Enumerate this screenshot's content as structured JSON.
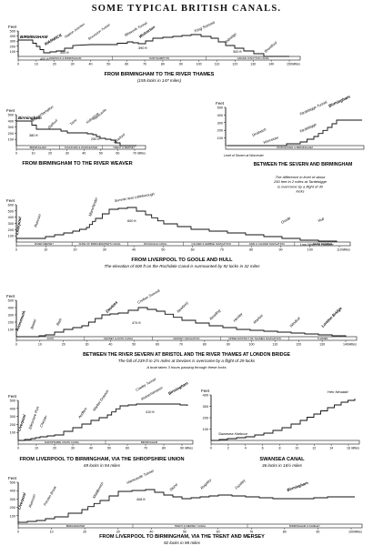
{
  "title": "SOME TYPICAL BRITISH CANALS.",
  "feet_label": "Feet",
  "miles_label": "Miles",
  "panels": [
    {
      "id": "thames",
      "caption": "FROM BIRMINGHAM TO THE RIVER THAMES",
      "subcaption": "(155 locks in 147 miles)",
      "y_ticks": [
        "500",
        "400",
        "300",
        "200",
        "100"
      ],
      "x_ticks": [
        "0",
        "10",
        "20",
        "30",
        "40",
        "50",
        "60",
        "70",
        "80",
        "90",
        "100",
        "110",
        "120",
        "130",
        "140",
        "150"
      ],
      "places": [
        "BIRMINGHAM",
        "WARWICK",
        "Napton Junction",
        "Braunston Tunnel",
        "Blisworth Tunnel",
        "Wolverton",
        "Tring Summit",
        "Uxbridge",
        "Brentford"
      ],
      "levels": [
        "400 ft",
        "300 ft",
        "390 ft",
        "300 ft"
      ],
      "band_labels": [
        "WARWICK & BIRMINGHAM",
        "NORTHAMPTON",
        "GRAND JUNCTION CANAL"
      ]
    },
    {
      "id": "weaver",
      "caption": "FROM BIRMINGHAM TO THE RIVER WEAVER",
      "y_ticks": [
        "500",
        "400",
        "300",
        "200",
        "100"
      ],
      "x_ticks": [
        "0",
        "10",
        "20",
        "30",
        "40",
        "50",
        "60",
        "70"
      ],
      "places": [
        "Birmingham",
        "Wolverhampton",
        "Stafford",
        "Trent",
        "Kidsgrove",
        "Harecastle",
        "Winsford"
      ],
      "levels": [
        "380 ft",
        "250 ft"
      ],
      "band_labels": [
        "BIRMINGHAM",
        "STAFFORD & WORCESTER",
        "TRENT & MERSEY"
      ]
    },
    {
      "id": "severn",
      "caption": "BETWEEN THE SEVERN AND BIRMINGHAM",
      "note": "The difference in level of about 250 feet in 2 miles at Tardebigge is overcome by a flight of 30 locks",
      "y_ticks": [
        "500",
        "400",
        "300",
        "200",
        "100"
      ],
      "places": [
        "Tardebigge Tunnel",
        "Birmingham",
        "Droitwich",
        "Tardebigge",
        "Worcester",
        "Level of Severn at Worcester"
      ],
      "band_labels": [
        "WORCESTER & BIRMINGHAM"
      ]
    },
    {
      "id": "goole",
      "caption": "FROM LIVERPOOL TO GOOLE AND HULL",
      "subcaption": "The elevation of 600 ft on the Rochdale Canal is surmounted by 92 locks in 32 miles",
      "y_ticks": [
        "600",
        "500",
        "400",
        "300",
        "200",
        "100"
      ],
      "x_ticks": [
        "0",
        "10",
        "20",
        "30",
        "40",
        "50",
        "60",
        "70",
        "80",
        "90",
        "100",
        "110"
      ],
      "places": [
        "Liverpool",
        "Runcorn",
        "Manchester",
        "Summit near Littleborough",
        "Goole",
        "Hull",
        "Low Water in Humber"
      ],
      "levels": [
        "600 ft"
      ],
      "band_labels": [
        "RIVER MERSEY",
        "DUKE OF BRIDGEWATER'S CANAL",
        "ROCHDALE CANAL",
        "CALDER & HEBBLE NAVIGATION",
        "AIRE & CALDER NAVIGATION",
        "RIVER HUMBER"
      ]
    },
    {
      "id": "kennet",
      "caption": "BETWEEN THE RIVER SEVERN AT BRISTOL AND THE RIVER THAMES AT LONDON BRIDGE",
      "subcaption": "The fall of 239 ft in 2½ miles at Devizes is overcome by a flight of 29 locks",
      "note": "A boat takes 3 hours passing through these locks",
      "y_ticks": [
        "500",
        "400",
        "300",
        "200",
        "100"
      ],
      "x_ticks": [
        "0",
        "10",
        "20",
        "30",
        "40",
        "50",
        "60",
        "70",
        "80",
        "90",
        "100",
        "110",
        "120",
        "130",
        "140"
      ],
      "places": [
        "Avonmouth",
        "Bristol",
        "Bath",
        "Devizes",
        "Crofton Summit",
        "Newbury",
        "Reading",
        "Henley",
        "Marlow",
        "Windsor",
        "London Bridge"
      ],
      "levels": [
        "474 ft"
      ],
      "band_labels": [
        "AVON",
        "KENNET & AVON CANAL",
        "KENNET NAVIGATION",
        "UPPER DISTRICT OF THAMES NAVIGATION",
        "THAMES"
      ]
    },
    {
      "id": "shropshire",
      "caption": "FROM LIVERPOOL TO BIRMINGHAM, VIA THE SHROPSHIRE UNION",
      "subcaption": "69 locks in 94 miles",
      "y_ticks": [
        "500",
        "400",
        "300",
        "200",
        "100"
      ],
      "x_ticks": [
        "0",
        "10",
        "20",
        "30",
        "40",
        "50",
        "60",
        "70",
        "80",
        "90"
      ],
      "places": [
        "Liverpool",
        "Ellesmere Port",
        "Chester",
        "Audlem",
        "Market Drayton",
        "Cowley Tunnel",
        "Wolverhampton",
        "Birmingham"
      ],
      "levels": [
        "410 ft"
      ],
      "band_labels": [
        "SHROPSHIRE UNION CANAL",
        "BIRMINGHAM"
      ]
    },
    {
      "id": "swansea",
      "caption": "SWANSEA CANAL",
      "subcaption": "36 locks in 16½ miles",
      "y_ticks": [
        "400",
        "300",
        "200",
        "100"
      ],
      "x_ticks": [
        "0",
        "2",
        "4",
        "6",
        "8",
        "10",
        "12",
        "14",
        "16"
      ],
      "places": [
        "Swansea Harbour",
        "Hen Neuadd"
      ]
    },
    {
      "id": "trent",
      "caption": "FROM LIVERPOOL TO BIRMINGHAM, VIA THE TRENT AND MERSEY",
      "subcaption": "92 locks in 98 miles",
      "y_ticks": [
        "500",
        "400",
        "300",
        "200",
        "100"
      ],
      "x_ticks": [
        "0",
        "10",
        "20",
        "30",
        "40",
        "50",
        "60",
        "70",
        "80",
        "90",
        "100"
      ],
      "places": [
        "Liverpool",
        "Runcorn",
        "Preston Brook",
        "Middlewich",
        "Harecastle Tunnel",
        "Stone",
        "Rugeley",
        "Fazeley",
        "Birmingham"
      ],
      "levels": [
        "408 ft"
      ],
      "band_labels": [
        "BRIDGEWATER",
        "TRENT & MERSEY CANAL",
        "BIRMINGHAM & FAZELEY"
      ]
    }
  ]
}
